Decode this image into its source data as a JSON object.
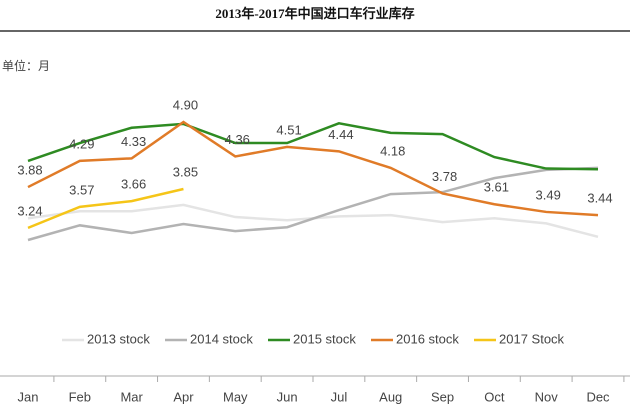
{
  "chart_data": {
    "type": "line",
    "title": "2013年-2017年中国进口车行业库存",
    "unit_label": "单位：月",
    "categories": [
      "Jan",
      "Feb",
      "Mar",
      "Apr",
      "May",
      "Jun",
      "Jul",
      "Aug",
      "Sep",
      "Oct",
      "Nov",
      "Dec"
    ],
    "series": [
      {
        "name": "2013 stock",
        "color": "#e4e4e4",
        "values": [
          3.39,
          3.5,
          3.5,
          3.6,
          3.41,
          3.36,
          3.42,
          3.44,
          3.33,
          3.39,
          3.31,
          3.1
        ]
      },
      {
        "name": "2014 stock",
        "color": "#b3b3b3",
        "values": [
          3.05,
          3.28,
          3.16,
          3.3,
          3.19,
          3.25,
          3.52,
          3.77,
          3.8,
          4.02,
          4.15,
          4.18
        ]
      },
      {
        "name": "2015 stock",
        "color": "#2e8b22",
        "values": [
          4.29,
          4.57,
          4.81,
          4.87,
          4.57,
          4.57,
          4.88,
          4.73,
          4.71,
          4.35,
          4.17,
          4.16
        ]
      },
      {
        "name": "2016 stock",
        "color": "#e07b28",
        "values": [
          3.88,
          4.29,
          4.33,
          4.9,
          4.36,
          4.51,
          4.44,
          4.18,
          3.78,
          3.61,
          3.49,
          3.44
        ],
        "value_labels": [
          "3.88",
          "4.29",
          "4.33",
          "4.90",
          "4.36",
          "4.51",
          "4.44",
          "4.18",
          "3.78",
          "3.61",
          "3.49",
          "3.44"
        ]
      },
      {
        "name": "2017 Stock",
        "color": "#f5c518",
        "values": [
          3.24,
          3.57,
          3.66,
          3.85,
          null,
          null,
          null,
          null,
          null,
          null,
          null,
          null
        ]
      }
    ]
  }
}
